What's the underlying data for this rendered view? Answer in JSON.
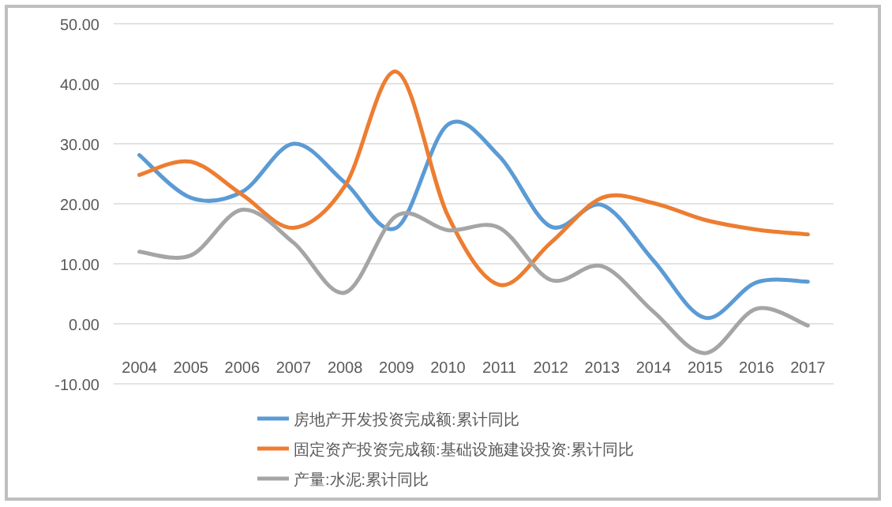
{
  "chart_data": {
    "type": "line",
    "categories": [
      "2004",
      "2005",
      "2006",
      "2007",
      "2008",
      "2009",
      "2010",
      "2011",
      "2012",
      "2013",
      "2014",
      "2015",
      "2016",
      "2017"
    ],
    "ylim": [
      -10,
      50
    ],
    "yticks": [
      {
        "value": -10,
        "label": "-10.00"
      },
      {
        "value": 0,
        "label": "0.00"
      },
      {
        "value": 10,
        "label": "10.00"
      },
      {
        "value": 20,
        "label": "20.00"
      },
      {
        "value": 30,
        "label": "30.00"
      },
      {
        "value": 40,
        "label": "40.00"
      },
      {
        "value": 50,
        "label": "50.00"
      }
    ],
    "grid": "y",
    "legend": "bottom",
    "series": [
      {
        "name": "房地产开发投资完成额:累计同比",
        "color": "#5b9bd5",
        "values": [
          28.1,
          21,
          22,
          30,
          23.5,
          16,
          33.2,
          27.9,
          16.2,
          19.8,
          10.5,
          1,
          6.9,
          7
        ]
      },
      {
        "name": "固定资产投资完成额:基础设施建设投资:累计同比",
        "color": "#ed7d31",
        "values": [
          24.8,
          27,
          21.5,
          16,
          23,
          42,
          18,
          6.5,
          13.5,
          21,
          20.1,
          17.3,
          15.7,
          14.9
        ]
      },
      {
        "name": "产量:水泥:累计同比",
        "color": "#a5a5a5",
        "values": [
          12,
          11.4,
          19,
          13.5,
          5.2,
          18,
          15.6,
          16,
          7.3,
          9.6,
          2,
          -4.9,
          2.5,
          -0.3
        ]
      }
    ]
  }
}
